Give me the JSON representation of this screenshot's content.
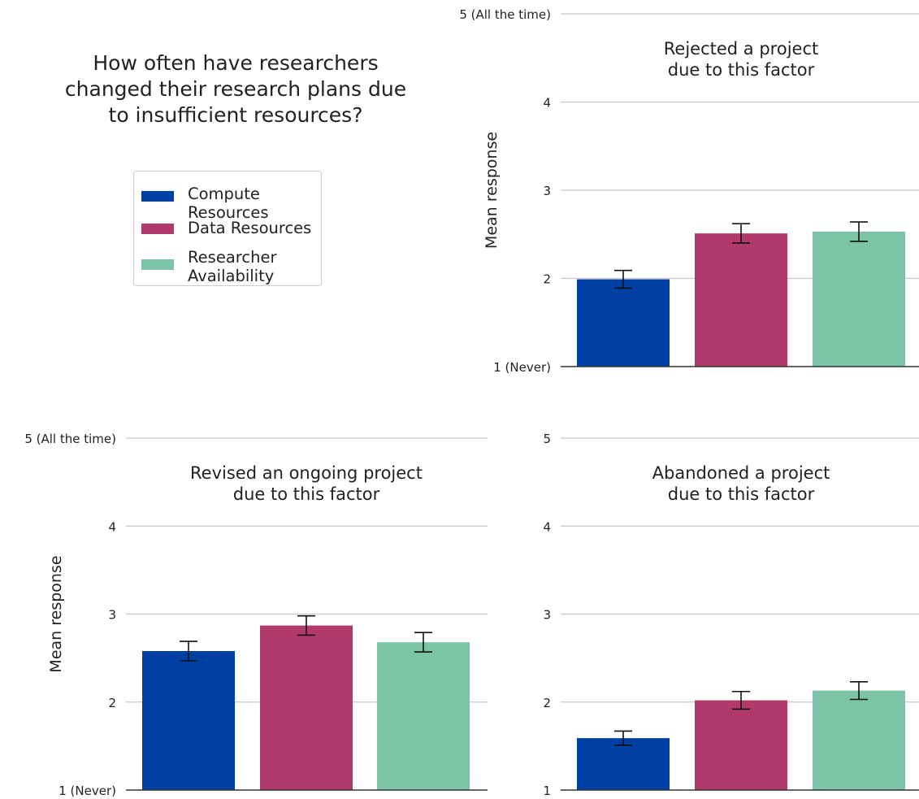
{
  "figure": {
    "title": "How often have researchers changed their research plans due to insufficient resources?"
  },
  "legend": {
    "items": [
      {
        "label_lines": [
          "Compute",
          "Resources"
        ],
        "color": "#003fa3"
      },
      {
        "label_lines": [
          "Data Resources"
        ],
        "color": "#b23a6b"
      },
      {
        "label_lines": [
          "Researcher",
          "Availability"
        ],
        "color": "#7bc4a7"
      }
    ]
  },
  "colors": {
    "grid": "#c8c8c8",
    "axis": "#333333",
    "errorbar": "#111111"
  },
  "chart_data": [
    {
      "type": "bar",
      "title": "Rejected a project due to this factor",
      "ylabel": "Mean response",
      "xlabel": "",
      "ylim": [
        1,
        5
      ],
      "yticks": [
        1,
        2,
        3,
        4,
        5
      ],
      "ytick_labels": [
        "1 (Never)",
        "2",
        "3",
        "4",
        "5 (All the time)"
      ],
      "grid": true,
      "categories": [
        "Compute Resources",
        "Data Resources",
        "Researcher Availability"
      ],
      "values": [
        1.99,
        2.51,
        2.53
      ],
      "errors": [
        0.1,
        0.11,
        0.11
      ]
    },
    {
      "type": "bar",
      "title": "Revised an ongoing project due to this factor",
      "ylabel": "Mean response",
      "xlabel": "",
      "ylim": [
        1,
        5
      ],
      "yticks": [
        1,
        2,
        3,
        4,
        5
      ],
      "ytick_labels": [
        "1 (Never)",
        "2",
        "3",
        "4",
        "5 (All the time)"
      ],
      "grid": true,
      "categories": [
        "Compute Resources",
        "Data Resources",
        "Researcher Availability"
      ],
      "values": [
        2.58,
        2.87,
        2.68
      ],
      "errors": [
        0.11,
        0.11,
        0.11
      ]
    },
    {
      "type": "bar",
      "title": "Abandoned a project due to this factor",
      "ylabel": "",
      "xlabel": "",
      "ylim": [
        1,
        5
      ],
      "yticks": [
        1,
        2,
        3,
        4,
        5
      ],
      "ytick_labels": [
        "1",
        "2",
        "3",
        "4",
        "5"
      ],
      "grid": true,
      "categories": [
        "Compute Resources",
        "Data Resources",
        "Researcher Availability"
      ],
      "values": [
        1.59,
        2.02,
        2.13
      ],
      "errors": [
        0.08,
        0.1,
        0.1
      ]
    }
  ]
}
